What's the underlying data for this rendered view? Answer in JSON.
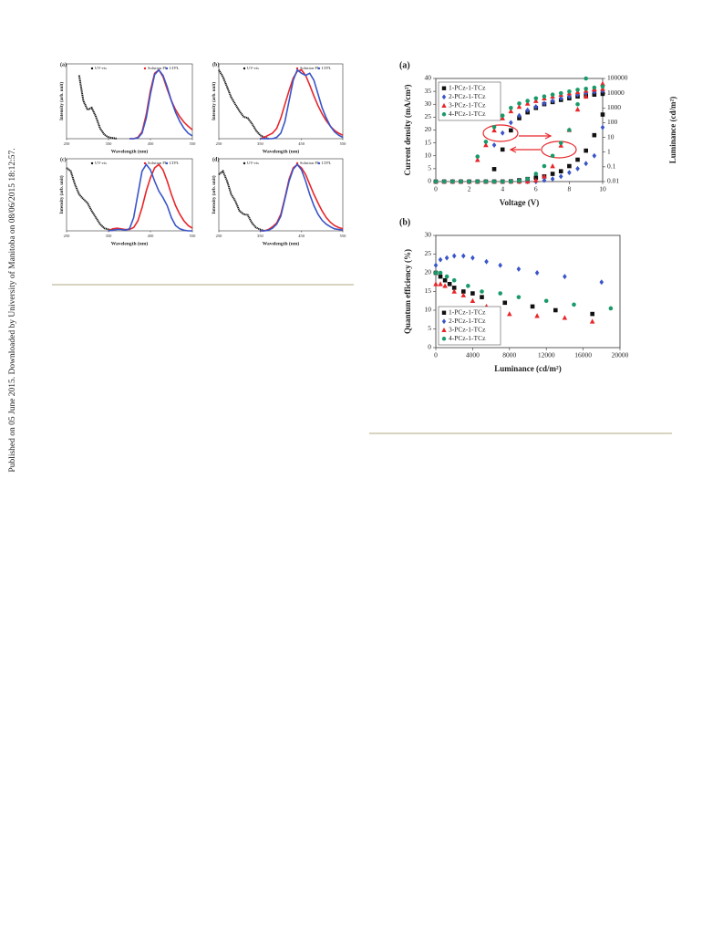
{
  "side_note": "Published on 05 June 2015. Downloaded by University of Manitoba on 08/06/2015 18:12:57.",
  "chart_data": [
    {
      "type": "line",
      "panel_label": "(a)",
      "xlabel": "Wavelength (nm)",
      "ylabel": "Intensity (arb. unit)",
      "xlim": [
        250,
        550
      ],
      "xticks": [
        250,
        350,
        450,
        550
      ],
      "ylim": [
        0,
        1
      ],
      "x": [
        250,
        260,
        270,
        280,
        290,
        300,
        310,
        320,
        330,
        340,
        350,
        360,
        370,
        380,
        390,
        400,
        410,
        420,
        430,
        440,
        450,
        460,
        470,
        480,
        490,
        500,
        510,
        520,
        530,
        540,
        550
      ],
      "series": [
        {
          "name": "UV-vis",
          "color": "#111111",
          "values": [
            null,
            null,
            null,
            0.92,
            0.55,
            0.42,
            0.45,
            0.32,
            0.15,
            0.06,
            0.02,
            0.01,
            0.0,
            null,
            null,
            null,
            null,
            null,
            null,
            null,
            null,
            null,
            null,
            null,
            null,
            null,
            null,
            null,
            null,
            null,
            null
          ]
        },
        {
          "name": "Solution PL",
          "color": "#e8262a",
          "values": [
            null,
            null,
            null,
            null,
            null,
            null,
            null,
            null,
            null,
            null,
            null,
            null,
            null,
            null,
            null,
            0,
            0,
            0.02,
            0.1,
            0.35,
            0.7,
            0.95,
            1.0,
            0.9,
            0.72,
            0.55,
            0.42,
            0.32,
            0.24,
            0.18,
            0.13
          ]
        },
        {
          "name": "LTPL",
          "color": "#3a55c8",
          "values": [
            null,
            null,
            null,
            null,
            null,
            null,
            null,
            null,
            null,
            null,
            null,
            null,
            null,
            null,
            null,
            0,
            0,
            0.01,
            0.08,
            0.3,
            0.65,
            0.93,
            1.0,
            0.92,
            0.75,
            0.55,
            0.38,
            0.25,
            0.15,
            0.08,
            0.04
          ]
        }
      ]
    },
    {
      "type": "line",
      "panel_label": "(b)",
      "xlabel": "Wavelength (nm)",
      "ylabel": "Intensity (arb. unit)",
      "xlim": [
        250,
        550
      ],
      "xticks": [
        250,
        350,
        450,
        550
      ],
      "ylim": [
        0,
        1
      ],
      "x": [
        250,
        260,
        270,
        280,
        290,
        300,
        310,
        320,
        330,
        340,
        350,
        360,
        370,
        380,
        390,
        400,
        410,
        420,
        430,
        440,
        450,
        460,
        470,
        480,
        490,
        500,
        510,
        520,
        530,
        540,
        550
      ],
      "series": [
        {
          "name": "UV-vis",
          "color": "#111111",
          "values": [
            1.0,
            0.9,
            0.75,
            0.6,
            0.5,
            0.4,
            0.32,
            0.3,
            0.22,
            0.12,
            0.05,
            0.02,
            0.0,
            null,
            null,
            null,
            null,
            null,
            null,
            null,
            null,
            null,
            null,
            null,
            null,
            null,
            null,
            null,
            null,
            null,
            null
          ]
        },
        {
          "name": "Solution PL",
          "color": "#e8262a",
          "values": [
            null,
            null,
            null,
            null,
            null,
            null,
            null,
            null,
            null,
            null,
            0,
            0.02,
            0.05,
            0.08,
            0.15,
            0.3,
            0.5,
            0.7,
            0.88,
            0.98,
            1.0,
            0.92,
            0.78,
            0.62,
            0.48,
            0.36,
            0.26,
            0.18,
            0.12,
            0.08,
            0.05
          ]
        },
        {
          "name": "LTPL",
          "color": "#3a55c8",
          "values": [
            null,
            null,
            null,
            null,
            null,
            null,
            null,
            null,
            null,
            null,
            0,
            0,
            0,
            0,
            0.02,
            0.08,
            0.25,
            0.55,
            0.85,
            1.0,
            0.95,
            0.92,
            0.95,
            0.85,
            0.65,
            0.45,
            0.3,
            0.18,
            0.1,
            0.05,
            0.02
          ]
        }
      ]
    },
    {
      "type": "line",
      "panel_label": "(c)",
      "xlabel": "Wavelength (nm)",
      "ylabel": "Intensity (arb. unit)",
      "xlim": [
        250,
        550
      ],
      "xticks": [
        250,
        350,
        450,
        550
      ],
      "ylim": [
        0,
        1
      ],
      "x": [
        250,
        260,
        270,
        280,
        290,
        300,
        310,
        320,
        330,
        340,
        350,
        360,
        370,
        380,
        390,
        400,
        410,
        420,
        430,
        440,
        450,
        460,
        470,
        480,
        490,
        500,
        510,
        520,
        530,
        540,
        550
      ],
      "series": [
        {
          "name": "UV-vis",
          "color": "#111111",
          "values": [
            0.95,
            0.9,
            0.7,
            0.55,
            0.48,
            0.42,
            0.3,
            0.2,
            0.1,
            0.04,
            0.02,
            0.01,
            null,
            null,
            null,
            null,
            null,
            null,
            null,
            null,
            null,
            null,
            null,
            null,
            null,
            null,
            null,
            null,
            null,
            null,
            null
          ]
        },
        {
          "name": "Solution PL",
          "color": "#e8262a",
          "values": [
            null,
            null,
            null,
            null,
            null,
            null,
            null,
            null,
            null,
            null,
            0,
            0.03,
            0.04,
            0.03,
            0.02,
            0.02,
            0.05,
            0.15,
            0.35,
            0.6,
            0.8,
            0.95,
            1.0,
            0.92,
            0.75,
            0.55,
            0.38,
            0.25,
            0.15,
            0.08,
            0.04
          ]
        },
        {
          "name": "LTPL",
          "color": "#3a55c8",
          "values": [
            null,
            null,
            null,
            null,
            null,
            null,
            null,
            null,
            null,
            null,
            0,
            0.01,
            0.02,
            0.02,
            0.01,
            0.03,
            0.2,
            0.55,
            0.9,
            1.0,
            0.92,
            0.75,
            0.6,
            0.5,
            0.38,
            0.2,
            0.08,
            0.03,
            0.01,
            0,
            0
          ]
        }
      ]
    },
    {
      "type": "line",
      "panel_label": "(d)",
      "xlabel": "Wavelength (nm)",
      "ylabel": "Intensity (arb. unit)",
      "xlim": [
        250,
        550
      ],
      "xticks": [
        250,
        350,
        450,
        550
      ],
      "ylim": [
        0,
        1
      ],
      "x": [
        250,
        260,
        270,
        280,
        290,
        300,
        310,
        320,
        330,
        340,
        350,
        360,
        370,
        380,
        390,
        400,
        410,
        420,
        430,
        440,
        450,
        460,
        470,
        480,
        490,
        500,
        510,
        520,
        530,
        540,
        550
      ],
      "series": [
        {
          "name": "UV-vis",
          "color": "#111111",
          "values": [
            0.85,
            0.9,
            0.75,
            0.55,
            0.45,
            0.3,
            0.25,
            0.24,
            0.12,
            0.05,
            0.02,
            0,
            null,
            null,
            null,
            null,
            null,
            null,
            null,
            null,
            null,
            null,
            null,
            null,
            null,
            null,
            null,
            null,
            null,
            null,
            null
          ]
        },
        {
          "name": "Solution PL",
          "color": "#e8262a",
          "values": [
            null,
            null,
            null,
            null,
            null,
            null,
            null,
            null,
            null,
            null,
            0,
            0,
            0.02,
            0.06,
            0.12,
            0.25,
            0.5,
            0.78,
            0.95,
            1.0,
            0.95,
            0.85,
            0.7,
            0.55,
            0.42,
            0.3,
            0.2,
            0.13,
            0.08,
            0.05,
            0.03
          ]
        },
        {
          "name": "LTPL",
          "color": "#3a55c8",
          "values": [
            null,
            null,
            null,
            null,
            null,
            null,
            null,
            null,
            null,
            null,
            0,
            0,
            0.01,
            0.04,
            0.1,
            0.22,
            0.48,
            0.75,
            0.93,
            1.0,
            0.92,
            0.75,
            0.55,
            0.38,
            0.25,
            0.16,
            0.1,
            0.06,
            0.03,
            0.02,
            0.01
          ]
        }
      ]
    },
    {
      "type": "scatter",
      "panel_label": "(a)",
      "xlabel": "Voltage (V)",
      "ylabel": "Current density (mA/cm²)",
      "y2label": "Luminance (cd/m²)",
      "xlim": [
        0,
        10
      ],
      "xticks": [
        0,
        2,
        4,
        6,
        8,
        10
      ],
      "ylim": [
        0,
        40
      ],
      "yticks": [
        0,
        5,
        10,
        15,
        20,
        25,
        30,
        35,
        40
      ],
      "y2lim": [
        0.01,
        100000
      ],
      "y2ticks": [
        0.01,
        0.1,
        1,
        10,
        100,
        1000,
        10000,
        100000
      ],
      "y2scale": "log",
      "x": [
        0,
        0.5,
        1,
        1.5,
        2,
        2.5,
        3,
        3.5,
        4,
        4.5,
        5,
        5.5,
        6,
        6.5,
        7,
        7.5,
        8,
        8.5,
        9,
        9.5,
        10
      ],
      "series": [
        {
          "name": "1-PCz-1-TCz",
          "color": "#111111",
          "marker": "square",
          "values": [
            0,
            0,
            0,
            0,
            0,
            0,
            0,
            0,
            0,
            0.1,
            0.5,
            1,
            1.5,
            2,
            3,
            4,
            6,
            8.5,
            12,
            18,
            26
          ],
          "y2_values": [
            null,
            null,
            null,
            null,
            null,
            null,
            null,
            0.07,
            1.5,
            30,
            200,
            500,
            1000,
            1800,
            2500,
            3500,
            4500,
            6000,
            7000,
            8000,
            9000
          ]
        },
        {
          "name": "2-PCz-1-TCz",
          "color": "#3a55c8",
          "marker": "diamond",
          "values": [
            0,
            0,
            0,
            0,
            0,
            0,
            0,
            0,
            0,
            0,
            0,
            0,
            0,
            0.5,
            1,
            2,
            3.5,
            5,
            7,
            10,
            21
          ],
          "y2_values": [
            null,
            null,
            null,
            null,
            null,
            null,
            null,
            3,
            20,
            100,
            300,
            700,
            1200,
            2000,
            3000,
            4500,
            6000,
            8000,
            10000,
            12000,
            14000
          ]
        },
        {
          "name": "3-PCz-1-TCz",
          "color": "#e8262a",
          "marker": "triangle",
          "values": [
            0,
            0,
            0,
            0,
            0,
            0,
            0,
            0,
            0,
            0,
            0,
            0,
            0.5,
            2,
            6,
            14,
            20,
            28,
            33,
            36,
            38
          ],
          "y2_values": [
            null,
            null,
            null,
            null,
            null,
            0.3,
            3,
            30,
            200,
            600,
            1200,
            2000,
            3000,
            4500,
            6000,
            8000,
            10000,
            12000,
            15000,
            18000,
            20000
          ]
        },
        {
          "name": "4-PCz-1-TCz",
          "color": "#1a9a6a",
          "marker": "circle",
          "values": [
            0,
            0,
            0,
            0,
            0,
            0,
            0,
            0,
            0,
            0,
            0.3,
            1,
            3,
            6,
            10,
            15,
            20,
            30,
            40,
            null,
            null
          ],
          "y2_values": [
            null,
            null,
            null,
            null,
            null,
            0.5,
            5,
            50,
            300,
            1000,
            2000,
            3000,
            4500,
            6000,
            8000,
            10000,
            13000,
            17000,
            20000,
            24000,
            28000
          ]
        }
      ]
    },
    {
      "type": "scatter",
      "panel_label": "(b)",
      "xlabel": "Luminance (cd/m²)",
      "ylabel": "Quantum efficiency (%)",
      "xlim": [
        0,
        20000
      ],
      "xticks": [
        0,
        4000,
        8000,
        12000,
        16000,
        20000
      ],
      "ylim": [
        0,
        30
      ],
      "yticks": [
        0,
        5,
        10,
        15,
        20,
        25,
        30
      ],
      "series": [
        {
          "name": "1-PCz-1-TCz",
          "color": "#111111",
          "marker": "square",
          "x": [
            0,
            500,
            1000,
            1500,
            2000,
            3000,
            4000,
            5000,
            7500,
            10500,
            13000,
            17000
          ],
          "values": [
            20,
            19,
            18,
            17,
            16,
            15,
            14.5,
            13.5,
            12,
            11,
            10,
            9
          ]
        },
        {
          "name": "2-PCz-1-TCz",
          "color": "#3a55c8",
          "marker": "diamond",
          "x": [
            0,
            500,
            1200,
            2000,
            3000,
            4000,
            5500,
            7000,
            9000,
            11000,
            14000,
            18000
          ],
          "values": [
            22,
            23.5,
            24,
            24.5,
            24.5,
            24,
            23,
            22,
            21,
            20,
            19,
            17.5
          ]
        },
        {
          "name": "3-PCz-1-TCz",
          "color": "#e8262a",
          "marker": "triangle",
          "x": [
            0,
            500,
            1000,
            2000,
            3000,
            4000,
            5500,
            8000,
            11000,
            14000,
            17000
          ],
          "values": [
            17,
            17,
            16.5,
            15,
            14,
            12.5,
            11,
            9,
            8.5,
            8,
            7
          ]
        },
        {
          "name": "4-PCz-1-TCz",
          "color": "#1a9a6a",
          "marker": "circle",
          "x": [
            0,
            500,
            1200,
            2000,
            3500,
            5000,
            7000,
            9000,
            12000,
            15000,
            19000
          ],
          "values": [
            20,
            20,
            19,
            18,
            16.5,
            15,
            14.5,
            13.5,
            12.5,
            11.5,
            10.5
          ]
        }
      ]
    }
  ]
}
